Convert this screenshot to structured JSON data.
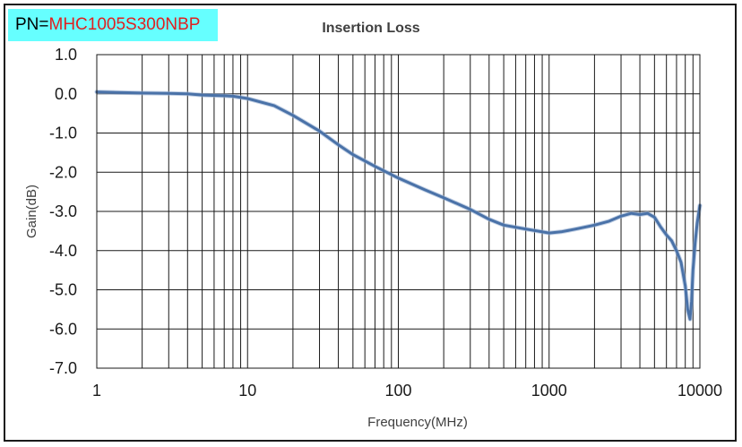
{
  "part_number": {
    "label": "PN=",
    "value": "MHC1005S300NBP"
  },
  "chart_data": {
    "type": "line",
    "title": "Insertion Loss",
    "xlabel": "Frequency(MHz)",
    "ylabel": "Gain(dB)",
    "xscale": "log",
    "xlim": [
      1,
      10000
    ],
    "ylim": [
      -7.0,
      1.0
    ],
    "x_ticks": [
      "1",
      "10",
      "100",
      "1000",
      "10000"
    ],
    "y_ticks": [
      "1.0",
      "0.0",
      "-1.0",
      "-2.0",
      "-3.0",
      "-4.0",
      "-5.0",
      "-6.0",
      "-7.0"
    ],
    "grid": true,
    "series_color": "#4a72a8",
    "series": [
      {
        "x": [
          1,
          1.5,
          2,
          3,
          4,
          5,
          7,
          8,
          10,
          15,
          20,
          30,
          40,
          50,
          70,
          100,
          150,
          200,
          300,
          400,
          500,
          700,
          1000,
          1200,
          1500,
          2000,
          2500,
          3000,
          3500,
          4000,
          4500,
          5000,
          5500,
          6000,
          6500,
          7000,
          7500,
          8000,
          8300,
          8600,
          8800,
          9000,
          9300,
          9600,
          10000
        ],
        "y": [
          0.05,
          0.03,
          0.02,
          0.01,
          0.0,
          -0.03,
          -0.05,
          -0.06,
          -0.12,
          -0.3,
          -0.55,
          -0.95,
          -1.3,
          -1.55,
          -1.85,
          -2.15,
          -2.45,
          -2.65,
          -2.95,
          -3.2,
          -3.35,
          -3.45,
          -3.55,
          -3.52,
          -3.45,
          -3.35,
          -3.25,
          -3.12,
          -3.05,
          -3.08,
          -3.05,
          -3.15,
          -3.4,
          -3.6,
          -3.75,
          -4.0,
          -4.3,
          -4.9,
          -5.5,
          -5.75,
          -5.3,
          -4.5,
          -3.8,
          -3.3,
          -2.85
        ]
      }
    ]
  }
}
